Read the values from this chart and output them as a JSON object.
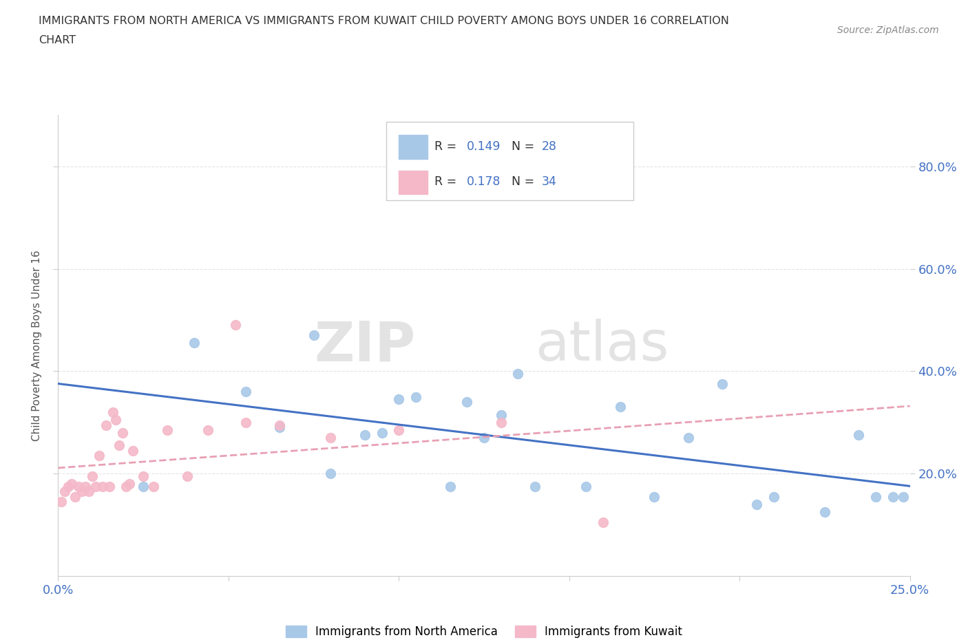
{
  "title_line1": "IMMIGRANTS FROM NORTH AMERICA VS IMMIGRANTS FROM KUWAIT CHILD POVERTY AMONG BOYS UNDER 16 CORRELATION",
  "title_line2": "CHART",
  "source": "Source: ZipAtlas.com",
  "ylabel": "Child Poverty Among Boys Under 16",
  "xlim": [
    0.0,
    0.25
  ],
  "ylim": [
    0.0,
    0.9
  ],
  "xticks": [
    0.0,
    0.05,
    0.1,
    0.15,
    0.2,
    0.25
  ],
  "yticks": [
    0.2,
    0.4,
    0.6,
    0.8
  ],
  "ytick_labels": [
    "20.0%",
    "40.0%",
    "60.0%",
    "80.0%"
  ],
  "xtick_labels": [
    "0.0%",
    "",
    "",
    "",
    "",
    "25.0%"
  ],
  "background_color": "#ffffff",
  "watermark_zip": "ZIP",
  "watermark_atlas": "atlas",
  "north_america_color": "#a8c8e8",
  "kuwait_color": "#f4b8c8",
  "north_america_line_color": "#4472c4",
  "kuwait_line_color": "#e8a0b4",
  "r_north_america": "0.149",
  "n_north_america": "28",
  "r_kuwait": "0.178",
  "n_kuwait": "34",
  "north_america_x": [
    0.025,
    0.04,
    0.055,
    0.065,
    0.075,
    0.08,
    0.09,
    0.095,
    0.1,
    0.105,
    0.115,
    0.12,
    0.125,
    0.13,
    0.135,
    0.14,
    0.155,
    0.165,
    0.175,
    0.185,
    0.195,
    0.205,
    0.21,
    0.225,
    0.235,
    0.24,
    0.245,
    0.248
  ],
  "north_america_y": [
    0.175,
    0.455,
    0.36,
    0.29,
    0.47,
    0.2,
    0.275,
    0.28,
    0.345,
    0.35,
    0.175,
    0.34,
    0.27,
    0.315,
    0.395,
    0.175,
    0.175,
    0.33,
    0.155,
    0.27,
    0.375,
    0.14,
    0.155,
    0.125,
    0.275,
    0.155,
    0.155,
    0.155
  ],
  "kuwait_x": [
    0.001,
    0.002,
    0.003,
    0.004,
    0.005,
    0.006,
    0.007,
    0.008,
    0.009,
    0.01,
    0.011,
    0.012,
    0.013,
    0.014,
    0.015,
    0.016,
    0.017,
    0.018,
    0.019,
    0.02,
    0.021,
    0.022,
    0.025,
    0.028,
    0.032,
    0.038,
    0.044,
    0.052,
    0.055,
    0.065,
    0.08,
    0.1,
    0.13,
    0.16
  ],
  "kuwait_y": [
    0.145,
    0.165,
    0.175,
    0.18,
    0.155,
    0.175,
    0.165,
    0.175,
    0.165,
    0.195,
    0.175,
    0.235,
    0.175,
    0.295,
    0.175,
    0.32,
    0.305,
    0.255,
    0.28,
    0.175,
    0.18,
    0.245,
    0.195,
    0.175,
    0.285,
    0.195,
    0.285,
    0.49,
    0.3,
    0.295,
    0.27,
    0.285,
    0.3,
    0.105
  ],
  "grid_color": "#e5e5e5",
  "tick_color": "#4472c4",
  "label_color": "#555555"
}
